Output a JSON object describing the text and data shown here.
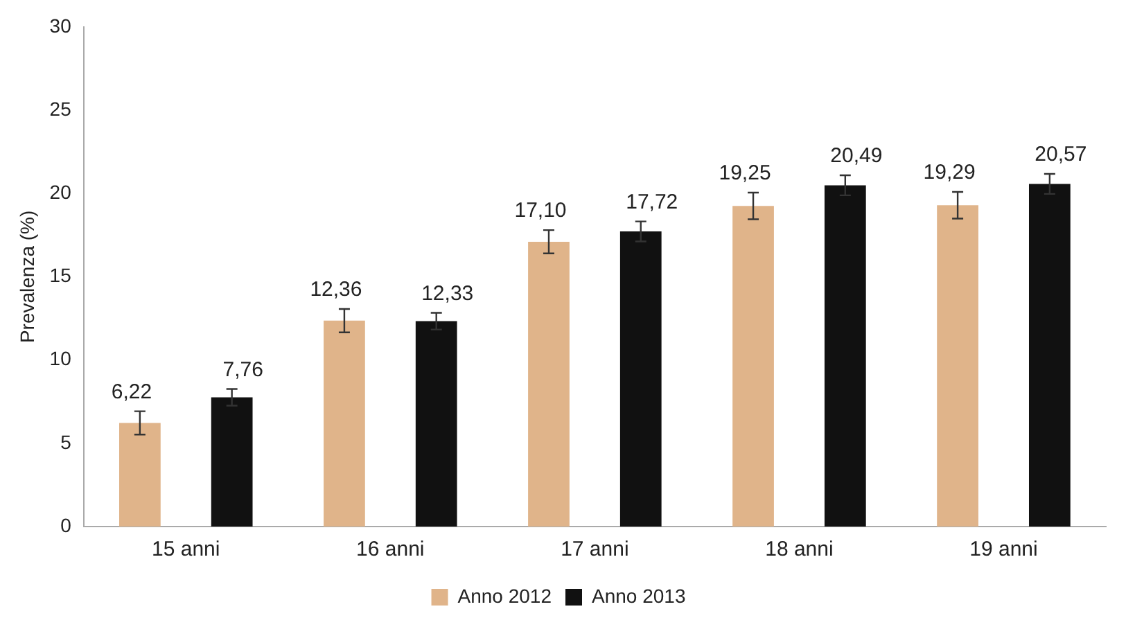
{
  "chart_data": {
    "type": "bar",
    "ylabel": "Prevalenza (%)",
    "categories": [
      "15 anni",
      "16 anni",
      "17 anni",
      "18 anni",
      "19 anni"
    ],
    "series": [
      {
        "name": "Anno 2012",
        "color": "#e0b48a",
        "values": [
          6.22,
          12.36,
          17.1,
          19.25,
          19.29
        ],
        "errors": [
          0.7,
          0.7,
          0.7,
          0.8,
          0.8
        ],
        "value_labels": [
          "6,22",
          "12,36",
          "17,10",
          "19,25",
          "19,29"
        ]
      },
      {
        "name": "Anno 2013",
        "color": "#111111",
        "values": [
          7.76,
          12.33,
          17.72,
          20.49,
          20.57
        ],
        "errors": [
          0.5,
          0.5,
          0.6,
          0.6,
          0.6
        ],
        "value_labels": [
          "7,76",
          "12,33",
          "17,72",
          "20,49",
          "20,57"
        ]
      }
    ],
    "ylim": [
      0,
      30
    ],
    "yticks": [
      0,
      5,
      10,
      15,
      20,
      25,
      30
    ],
    "grid": false,
    "legend": "bottom"
  }
}
